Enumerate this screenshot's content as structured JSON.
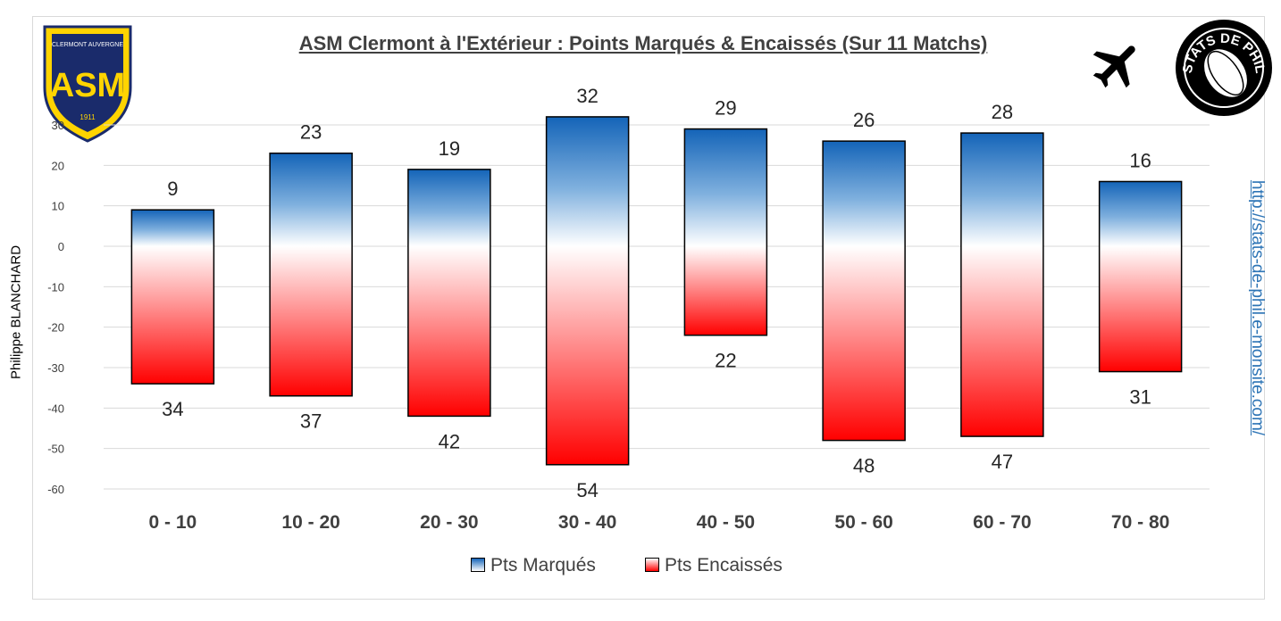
{
  "title": "ASM Clermont à l'Extérieur : Points Marqués & Encaissés (Sur 11 Matchs)",
  "author": "Philippe BLANCHARD",
  "site_url": "http://stats-de-phil.e-monsite.com/",
  "logos": {
    "asm_top": "CLERMONT AUVERGNE",
    "asm_mark": "ASM",
    "asm_year": "1911",
    "stats_text": "STATS DE PHIL"
  },
  "icons": {
    "travel": "airplane-icon"
  },
  "colors": {
    "marques": "#1f6fc0",
    "encaisses": "#ff0000",
    "text": "#404040"
  },
  "chart_data": {
    "type": "bar",
    "title": "ASM Clermont à l'Extérieur : Points Marqués & Encaissés (Sur 11 Matchs)",
    "categories": [
      "0 - 10",
      "10 - 20",
      "20 - 30",
      "30 - 40",
      "40 - 50",
      "50 - 60",
      "60 - 70",
      "70 - 80"
    ],
    "series": [
      {
        "name": "Pts Marqués",
        "values": [
          9,
          23,
          19,
          32,
          29,
          26,
          28,
          16
        ],
        "labels": [
          "9",
          "23",
          "19",
          "32",
          "29",
          "26",
          "28",
          "16"
        ]
      },
      {
        "name": "Pts Encaissés",
        "values": [
          -34,
          -37,
          -42,
          -54,
          -22,
          -48,
          -47,
          -31
        ],
        "labels": [
          "34",
          "37",
          "42",
          "54",
          "22",
          "48",
          "47",
          "31"
        ]
      }
    ],
    "ylim": [
      -60,
      30
    ],
    "yticks": [
      30,
      20,
      10,
      0,
      -10,
      -20,
      -30,
      -40,
      -50,
      -60
    ],
    "ytick_labels": [
      "30",
      "20",
      "10",
      "0",
      "-10",
      "-20",
      "-30",
      "-40",
      "-50",
      "-60"
    ],
    "grid": true,
    "legend": "bottom"
  }
}
